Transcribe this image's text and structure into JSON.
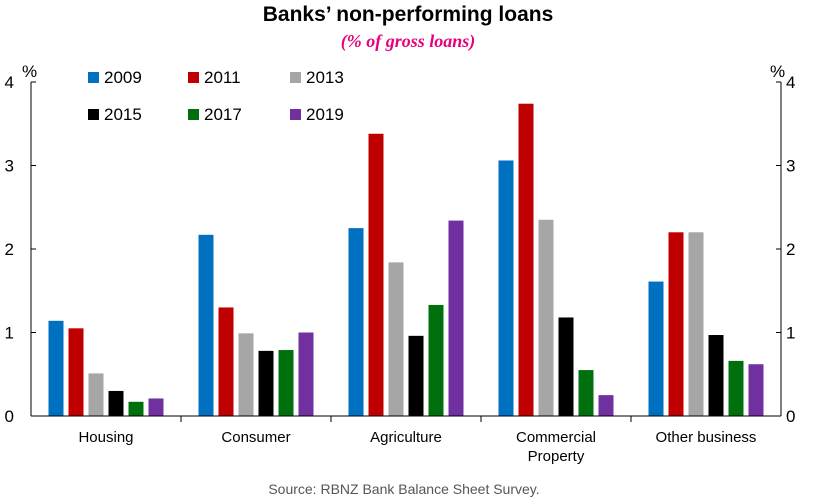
{
  "chart_data": {
    "type": "bar",
    "title": "Banks’ non-performing loans",
    "subtitle": "(% of gross loans)",
    "y_unit_left": "%",
    "y_unit_right": "%",
    "ylim": [
      0,
      4
    ],
    "yticks": [
      "0",
      "1",
      "2",
      "3",
      "4"
    ],
    "categories": [
      [
        "Housing"
      ],
      [
        "Consumer"
      ],
      [
        "Agriculture"
      ],
      [
        "Commercial",
        "Property"
      ],
      [
        "Other business"
      ]
    ],
    "series": [
      {
        "name": "2009",
        "color": "#0070c0",
        "values": [
          1.14,
          2.17,
          2.25,
          3.06,
          1.61
        ]
      },
      {
        "name": "2011",
        "color": "#c00000",
        "values": [
          1.05,
          1.3,
          3.38,
          3.74,
          2.2
        ]
      },
      {
        "name": "2013",
        "color": "#a6a6a6",
        "values": [
          0.51,
          0.99,
          1.84,
          2.35,
          2.2
        ]
      },
      {
        "name": "2015",
        "color": "#000000",
        "values": [
          0.3,
          0.78,
          0.96,
          1.18,
          0.97
        ]
      },
      {
        "name": "2017",
        "color": "#00700f",
        "values": [
          0.17,
          0.79,
          1.33,
          0.55,
          0.66
        ]
      },
      {
        "name": "2019",
        "color": "#7030a0",
        "values": [
          0.21,
          1.0,
          2.34,
          0.25,
          0.62
        ]
      }
    ],
    "legend_placement": "top-left",
    "grid": false,
    "source": "Source: RBNZ Bank Balance Sheet Survey.",
    "colors": {
      "subtitle": "#e6007e",
      "axis": "#000000"
    }
  }
}
